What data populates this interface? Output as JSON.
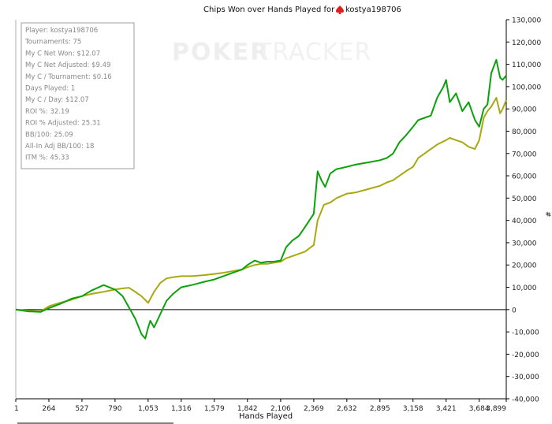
{
  "title_prefix": "Chips Won over Hands Played for",
  "player_name": "kostya198706",
  "watermark": {
    "part1": "POKER",
    "part2": "TRACKER"
  },
  "stats": [
    "Player: kostya198706",
    "Tournaments: 75",
    "My C Net Won: $12.07",
    "My C Net Adjusted: $9.49",
    "My C / Tournament: $0.16",
    "Days Played: 1",
    "My C / Day: $12.07",
    "ROI %: 32.19",
    "ROI % Adjusted: 25.31",
    "BB/100: 25.09",
    "All-In Adj BB/100: 18",
    "ITM %: 45.33"
  ],
  "colors": {
    "net_won": "#0aa10a",
    "all_in_adj": "#a8a812",
    "axis": "#000000",
    "brand_icon": "#e02020"
  },
  "chart_data": {
    "type": "line",
    "xlabel": "Hands Played",
    "ylabel": "#",
    "xlim": [
      1,
      3899
    ],
    "ylim": [
      -40000,
      130000
    ],
    "x_ticks": [
      "1",
      "264",
      "527",
      "790",
      "1,053",
      "1,316",
      "1,579",
      "1,842",
      "2,106",
      "2,369",
      "2,632",
      "2,895",
      "3,158",
      "3,421",
      "3,684",
      "3,899"
    ],
    "y_ticks": [
      "-40,000",
      "-30,000",
      "-20,000",
      "-10,000",
      "0",
      "10,000",
      "20,000",
      "30,000",
      "40,000",
      "50,000",
      "60,000",
      "70,000",
      "80,000",
      "90,000",
      "100,000",
      "110,000",
      "120,000",
      "130,000"
    ],
    "series": [
      {
        "color": "green",
        "x": [
          1,
          100,
          200,
          264,
          350,
          450,
          527,
          600,
          700,
          790,
          850,
          900,
          950,
          1000,
          1030,
          1053,
          1070,
          1100,
          1150,
          1200,
          1250,
          1316,
          1400,
          1500,
          1579,
          1650,
          1700,
          1750,
          1800,
          1842,
          1900,
          1950,
          2000,
          2050,
          2106,
          2150,
          2200,
          2250,
          2300,
          2369,
          2400,
          2430,
          2460,
          2500,
          2550,
          2632,
          2700,
          2800,
          2895,
          2950,
          3000,
          3050,
          3100,
          3158,
          3200,
          3250,
          3300,
          3350,
          3400,
          3421,
          3450,
          3500,
          3550,
          3600,
          3650,
          3684,
          3720,
          3750,
          3780,
          3820,
          3850,
          3870,
          3899
        ],
        "y": [
          0,
          -800,
          -1000,
          600,
          2500,
          5000,
          6000,
          8500,
          11000,
          9000,
          6000,
          1000,
          -4000,
          -11000,
          -13000,
          -8000,
          -5000,
          -8000,
          -2000,
          4000,
          7000,
          10000,
          11000,
          12500,
          13500,
          15000,
          16000,
          17000,
          18000,
          20000,
          22000,
          21000,
          21500,
          21500,
          22000,
          28000,
          31000,
          33000,
          37000,
          43000,
          62000,
          58000,
          55000,
          61000,
          63000,
          64000,
          65000,
          66000,
          67000,
          68000,
          70000,
          75000,
          78000,
          82000,
          85000,
          86000,
          87000,
          95000,
          100000,
          103000,
          93000,
          97000,
          89000,
          93000,
          85000,
          82000,
          90000,
          92000,
          106000,
          112000,
          104000,
          103000,
          105000
        ]
      },
      {
        "color": "olive",
        "x": [
          1,
          100,
          200,
          264,
          350,
          450,
          527,
          600,
          700,
          790,
          850,
          900,
          950,
          1000,
          1053,
          1100,
          1150,
          1200,
          1250,
          1316,
          1400,
          1500,
          1579,
          1650,
          1700,
          1750,
          1800,
          1842,
          1900,
          1950,
          2000,
          2050,
          2106,
          2150,
          2200,
          2250,
          2300,
          2369,
          2400,
          2450,
          2500,
          2550,
          2632,
          2700,
          2800,
          2895,
          2950,
          3000,
          3050,
          3100,
          3158,
          3200,
          3250,
          3300,
          3350,
          3421,
          3450,
          3500,
          3550,
          3600,
          3650,
          3684,
          3720,
          3750,
          3780,
          3820,
          3850,
          3870,
          3899
        ],
        "y": [
          0,
          -500,
          -800,
          1500,
          3000,
          4500,
          6000,
          7000,
          8000,
          9000,
          9500,
          9800,
          8000,
          6000,
          3000,
          8000,
          12000,
          14000,
          14500,
          15000,
          15000,
          15500,
          16000,
          16500,
          17000,
          17500,
          18000,
          19000,
          20000,
          20500,
          20500,
          21000,
          21500,
          23000,
          24000,
          25000,
          26000,
          29000,
          40000,
          47000,
          48000,
          50000,
          52000,
          52500,
          54000,
          55500,
          57000,
          58000,
          60000,
          62000,
          64000,
          68000,
          70000,
          72000,
          74000,
          76000,
          77000,
          76000,
          75000,
          73000,
          72000,
          76000,
          86000,
          89000,
          91000,
          95000,
          88000,
          90000,
          94000
        ]
      }
    ]
  }
}
